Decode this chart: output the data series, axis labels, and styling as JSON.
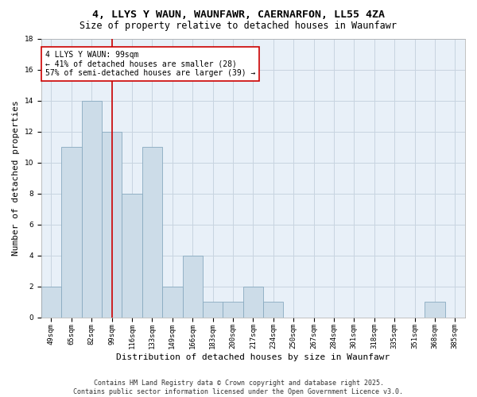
{
  "title1": "4, LLYS Y WAUN, WAUNFAWR, CAERNARFON, LL55 4ZA",
  "title2": "Size of property relative to detached houses in Waunfawr",
  "xlabel": "Distribution of detached houses by size in Waunfawr",
  "ylabel": "Number of detached properties",
  "categories": [
    "49sqm",
    "65sqm",
    "82sqm",
    "99sqm",
    "116sqm",
    "133sqm",
    "149sqm",
    "166sqm",
    "183sqm",
    "200sqm",
    "217sqm",
    "234sqm",
    "250sqm",
    "267sqm",
    "284sqm",
    "301sqm",
    "318sqm",
    "335sqm",
    "351sqm",
    "368sqm",
    "385sqm"
  ],
  "values": [
    2,
    11,
    14,
    12,
    8,
    11,
    2,
    4,
    1,
    1,
    2,
    1,
    0,
    0,
    0,
    0,
    0,
    0,
    0,
    1,
    0
  ],
  "bar_color": "#ccdce8",
  "bar_edge_color": "#88aac0",
  "vline_x": 3,
  "vline_color": "#cc0000",
  "annotation_text": "4 LLYS Y WAUN: 99sqm\n← 41% of detached houses are smaller (28)\n57% of semi-detached houses are larger (39) →",
  "annotation_box_color": "#ffffff",
  "annotation_box_edge": "#cc0000",
  "ylim": [
    0,
    18
  ],
  "yticks": [
    0,
    2,
    4,
    6,
    8,
    10,
    12,
    14,
    16,
    18
  ],
  "footnote": "Contains HM Land Registry data © Crown copyright and database right 2025.\nContains public sector information licensed under the Open Government Licence v3.0.",
  "bg_color": "#e8f0f8",
  "grid_color": "#c8d4e0",
  "title_fontsize": 9.5,
  "subtitle_fontsize": 8.5,
  "axis_label_fontsize": 8,
  "tick_fontsize": 6.5,
  "annotation_fontsize": 7,
  "footnote_fontsize": 6
}
